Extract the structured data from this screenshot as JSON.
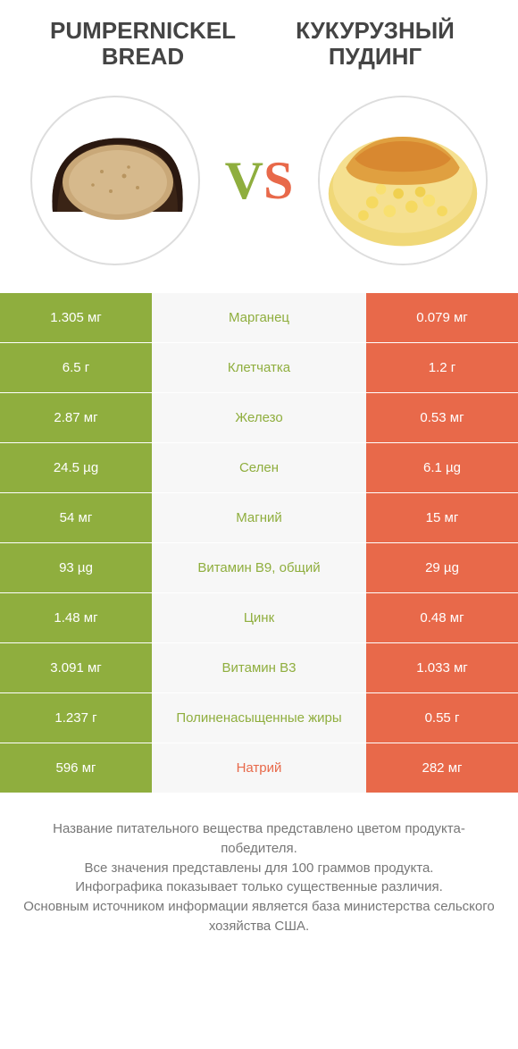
{
  "header": {
    "left_title_line1": "PUMPERNICKEL",
    "left_title_line2": "BREAD",
    "right_title_line1": "КУКУРУЗНЫЙ",
    "right_title_line2": "ПУДИНГ"
  },
  "vs": {
    "v": "V",
    "s": "S"
  },
  "colors": {
    "green": "#8fae3e",
    "orange": "#e8694a",
    "bg": "#ffffff",
    "mid_bg": "#f7f7f7",
    "text_gray": "#777777"
  },
  "rows": [
    {
      "left": "1.305 мг",
      "mid": "Марганец",
      "right": "0.079 мг",
      "winner": "green"
    },
    {
      "left": "6.5 г",
      "mid": "Клетчатка",
      "right": "1.2 г",
      "winner": "green"
    },
    {
      "left": "2.87 мг",
      "mid": "Железо",
      "right": "0.53 мг",
      "winner": "green"
    },
    {
      "left": "24.5 µg",
      "mid": "Селен",
      "right": "6.1 µg",
      "winner": "green"
    },
    {
      "left": "54 мг",
      "mid": "Магний",
      "right": "15 мг",
      "winner": "green"
    },
    {
      "left": "93 µg",
      "mid": "Витамин B9, общий",
      "right": "29 µg",
      "winner": "green"
    },
    {
      "left": "1.48 мг",
      "mid": "Цинк",
      "right": "0.48 мг",
      "winner": "green"
    },
    {
      "left": "3.091 мг",
      "mid": "Витамин B3",
      "right": "1.033 мг",
      "winner": "green"
    },
    {
      "left": "1.237 г",
      "mid": "Полиненасыщенные жиры",
      "right": "0.55 г",
      "winner": "green"
    },
    {
      "left": "596 мг",
      "mid": "Натрий",
      "right": "282 мг",
      "winner": "orange"
    }
  ],
  "footer": {
    "line1": "Название питательного вещества представлено цветом продукта-победителя.",
    "line2": "Все значения представлены для 100 граммов продукта.",
    "line3": "Инфографика показывает только существенные различия.",
    "line4": "Основным источником информации является база министерства сельского хозяйства США."
  }
}
